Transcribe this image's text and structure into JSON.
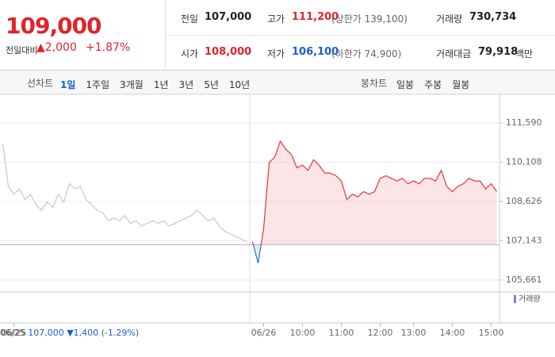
{
  "quote": {
    "price": "109,000",
    "change_label": "전일대비",
    "change": "▲2,000",
    "change_pct": "+1.87%",
    "prev_close_label": "전일",
    "prev_close": "107,000",
    "high_label": "고가",
    "high": "111,200",
    "upper_limit": "(상한가 139,100)",
    "volume_label": "거래량",
    "volume": "730,734",
    "open_label": "시가",
    "open": "108,000",
    "low_label": "저가",
    "low": "106,100",
    "lower_limit": "(하한가 74,900)",
    "amount_label": "거래대금",
    "amount": "79,918",
    "amount_unit": "백만"
  },
  "tabs": {
    "line_label": "선차트",
    "periods": [
      "1일",
      "1주일",
      "3개월",
      "1년",
      "3년",
      "5년",
      "10년"
    ],
    "candle_label": "봉차트",
    "candles": [
      "일봉",
      "주봉",
      "월봉"
    ]
  },
  "footer": {
    "date": "06/25",
    "close": "107,000",
    "change": "▼1,400",
    "pct": "(-1.29%)"
  },
  "chart_data": {
    "type": "line",
    "volume_label": "거래량",
    "baseline": 107000,
    "categories": [
      null,
      null,
      "06/25",
      null,
      null,
      null,
      null,
      null,
      null,
      null,
      null,
      null,
      null,
      null,
      null,
      null,
      null,
      null,
      null,
      null,
      null,
      null,
      null,
      null,
      null,
      null,
      null,
      null,
      null,
      null,
      null,
      null,
      null,
      null,
      null,
      null,
      null,
      null,
      null,
      null,
      null,
      null,
      null,
      null,
      null,
      null,
      null,
      "06/26",
      null,
      null,
      null,
      null,
      null,
      null,
      "10:00",
      null,
      null,
      null,
      null,
      null,
      null,
      "11:00",
      null,
      null,
      null,
      null,
      null,
      null,
      "12:00",
      null,
      null,
      null,
      null,
      null,
      "13:00",
      null,
      null,
      null,
      null,
      null,
      null,
      "14:00",
      null,
      null,
      null,
      null,
      null,
      null,
      "15:00",
      null
    ],
    "series": [
      {
        "color": "#c8c8c8",
        "values": [
          110800,
          109200,
          108900,
          109100,
          108700,
          108900,
          108500,
          108300,
          108600,
          108400,
          108900,
          108600,
          109300,
          109100,
          109200,
          108700,
          108500,
          108300,
          108200,
          107900,
          108000,
          107900,
          108100,
          107800,
          107900,
          107700,
          107800,
          107900,
          107800,
          107900,
          107700,
          107800,
          107900,
          108000,
          108100,
          108300,
          108100,
          107900,
          108000,
          107700,
          107500,
          107400,
          107300,
          107200,
          107100,
          null,
          null,
          null,
          null,
          null,
          null,
          null,
          null,
          null,
          null,
          null,
          null,
          null,
          null,
          null,
          null,
          null,
          null,
          null,
          null,
          null,
          null,
          null,
          null,
          null,
          null,
          null,
          null,
          null,
          null,
          null,
          null,
          null,
          null,
          null,
          null,
          null,
          null,
          null,
          null,
          null,
          null,
          null,
          null,
          null
        ]
      },
      {
        "color": "#e8333b",
        "color_below": "#2a6fd6",
        "values": [
          null,
          null,
          null,
          null,
          null,
          null,
          null,
          null,
          null,
          null,
          null,
          null,
          null,
          null,
          null,
          null,
          null,
          null,
          null,
          null,
          null,
          null,
          null,
          null,
          null,
          null,
          null,
          null,
          null,
          null,
          null,
          null,
          null,
          null,
          null,
          null,
          null,
          null,
          null,
          null,
          null,
          null,
          null,
          null,
          null,
          107100,
          106300,
          107600,
          110100,
          110300,
          110900,
          110600,
          110400,
          109900,
          110000,
          109800,
          110200,
          110000,
          109700,
          109700,
          109600,
          109400,
          108700,
          108900,
          108800,
          109000,
          108900,
          109000,
          109500,
          109600,
          109500,
          109400,
          109500,
          109300,
          109400,
          109300,
          109500,
          109500,
          109400,
          109800,
          109200,
          109000,
          109200,
          109300,
          109500,
          109400,
          109400,
          109100,
          109300,
          109000
        ]
      }
    ],
    "ylim": [
      105300,
      112490
    ],
    "yticks": [
      {
        "value": 105661,
        "label": "105,661"
      },
      {
        "value": 107143,
        "label": "107,143"
      },
      {
        "value": 108626,
        "label": "108,626"
      },
      {
        "value": 110108,
        "label": "110,108"
      },
      {
        "value": 111590,
        "label": "111,590"
      }
    ],
    "grid": true
  }
}
